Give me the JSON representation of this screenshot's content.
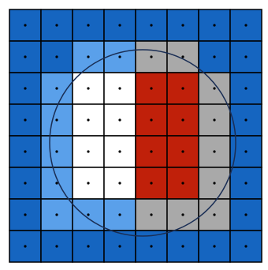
{
  "cells": [
    [
      "#1565c0",
      "#1565c0",
      "#1565c0",
      "#1565c0",
      "#1565c0",
      "#1565c0",
      "#1565c0",
      "#1565c0"
    ],
    [
      "#1565c0",
      "#1565c0",
      "#5aa0ea",
      "#5aa0ea",
      "#a9a9a9",
      "#a9a9a9",
      "#1565c0",
      "#1565c0"
    ],
    [
      "#1565c0",
      "#5aa0ea",
      "#ffffff",
      "#ffffff",
      "#c0200a",
      "#c0200a",
      "#a9a9a9",
      "#1565c0"
    ],
    [
      "#1565c0",
      "#5aa0ea",
      "#ffffff",
      "#ffffff",
      "#c0200a",
      "#c0200a",
      "#a9a9a9",
      "#1565c0"
    ],
    [
      "#1565c0",
      "#5aa0ea",
      "#ffffff",
      "#ffffff",
      "#c0200a",
      "#c0200a",
      "#a9a9a9",
      "#1565c0"
    ],
    [
      "#1565c0",
      "#5aa0ea",
      "#ffffff",
      "#ffffff",
      "#c0200a",
      "#c0200a",
      "#a9a9a9",
      "#1565c0"
    ],
    [
      "#1565c0",
      "#5aa0ea",
      "#5aa0ea",
      "#5aa0ea",
      "#a9a9a9",
      "#a9a9a9",
      "#a9a9a9",
      "#1565c0"
    ],
    [
      "#1565c0",
      "#1565c0",
      "#1565c0",
      "#1565c0",
      "#1565c0",
      "#1565c0",
      "#1565c0",
      "#1565c0"
    ]
  ]
}
